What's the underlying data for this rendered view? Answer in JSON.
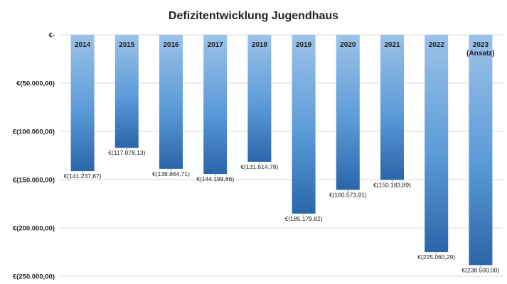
{
  "chart_data": {
    "type": "bar",
    "title": "Defizitentwicklung Jugendhaus",
    "categories": [
      "2014",
      "2015",
      "2016",
      "2017",
      "2018",
      "2019",
      "2020",
      "2021",
      "2022",
      "2023"
    ],
    "category_sublabels": [
      "",
      "",
      "",
      "",
      "",
      "",
      "",
      "",
      "",
      "(Ansatz)"
    ],
    "values": [
      -141237.87,
      -117078.13,
      -138864.71,
      -144199.86,
      -131514.78,
      -185179.82,
      -160573.91,
      -150183.89,
      -225060.29,
      -238500.0
    ],
    "data_labels": [
      "€(141.237,87)",
      "€(117.078,13)",
      "€(138.864,71)",
      "€(144.199,86)",
      "€(131.514,78)",
      "€(185.179,82)",
      "€(160.573,91)",
      "€(150.183,89)",
      "€(225.060,29)",
      "€(238.500,00)"
    ],
    "y_ticks": [
      0,
      -50000,
      -100000,
      -150000,
      -200000,
      -250000
    ],
    "y_tick_labels": [
      "€-",
      "€(50.000,00)",
      "€(100.000,00)",
      "€(150.000,00)",
      "€(200.000,00)",
      "€(250.000,00)"
    ],
    "ylim": [
      -250000,
      0
    ],
    "grid": true,
    "legend": "none",
    "colors": {
      "bar_top": "#9cc2e8",
      "bar_mid": "#5b9bd8",
      "bar_bottom": "#2a66aa",
      "grid": "#d9d9d9",
      "text": "#222222"
    }
  }
}
